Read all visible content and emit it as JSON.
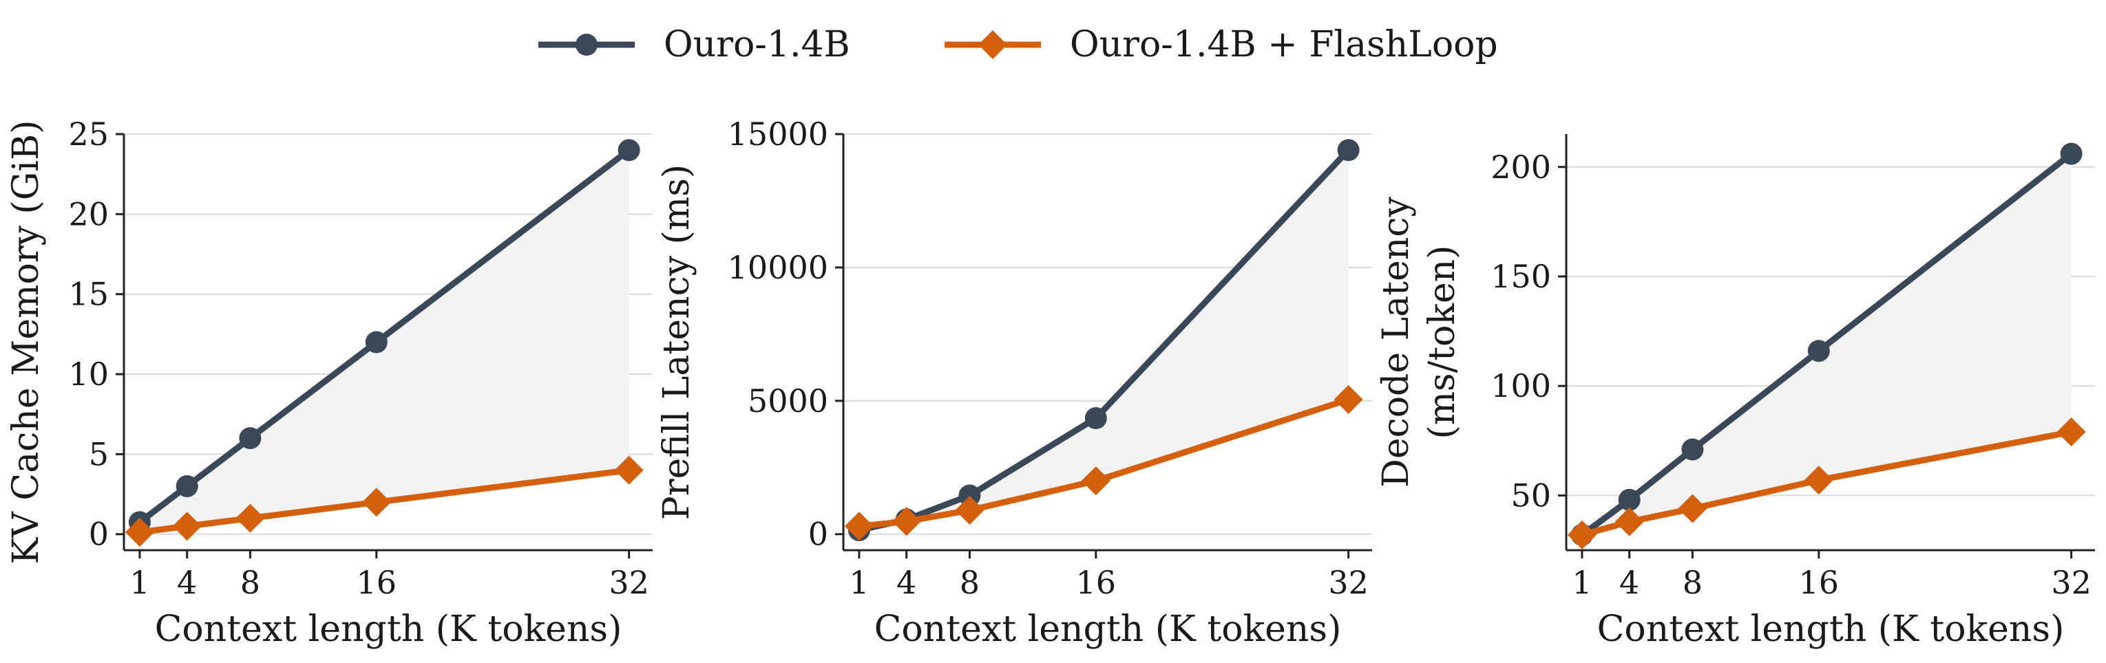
{
  "legend": {
    "placement": "top-center",
    "entries": [
      {
        "label": "Ouro-1.4B",
        "color": "#3b4858",
        "marker": "circle"
      },
      {
        "label": "Ouro-1.4B + FlashLoop",
        "color": "#d45f0c",
        "marker": "diamond"
      }
    ]
  },
  "colors": {
    "baseline": "#3b4858",
    "flashloop": "#d45f0c",
    "fill": "#f2f2f2",
    "grid": "#d9d9d9"
  },
  "chart_data": [
    {
      "type": "line",
      "xlabel": "Context length (K tokens)",
      "ylabel": [
        "KV Cache Memory (GiB)"
      ],
      "x": [
        1,
        4,
        8,
        16,
        32
      ],
      "xticks": [
        1,
        4,
        8,
        16,
        32
      ],
      "xlim": [
        0,
        33.5
      ],
      "ylim": [
        -1,
        25
      ],
      "yticks": [
        0,
        5,
        10,
        15,
        20,
        25
      ],
      "grid": "horizontal",
      "fill_between": true,
      "series": [
        {
          "name": "Ouro-1.4B",
          "values": [
            0.75,
            3,
            6,
            12,
            24
          ]
        },
        {
          "name": "Ouro-1.4B + FlashLoop",
          "values": [
            0.125,
            0.5,
            1,
            2,
            4
          ]
        }
      ]
    },
    {
      "type": "line",
      "xlabel": "Context length (K tokens)",
      "ylabel": [
        "Prefill Latency (ms)"
      ],
      "x": [
        1,
        4,
        8,
        16,
        32
      ],
      "xticks": [
        1,
        4,
        8,
        16,
        32
      ],
      "xlim": [
        0,
        33.5
      ],
      "ylim": [
        -600,
        15000
      ],
      "yticks": [
        0,
        5000,
        10000,
        15000
      ],
      "grid": "horizontal",
      "fill_between": true,
      "series": [
        {
          "name": "Ouro-1.4B",
          "values": [
            150,
            550,
            1450,
            4350,
            14400
          ]
        },
        {
          "name": "Ouro-1.4B + FlashLoop",
          "values": [
            300,
            480,
            900,
            2000,
            5050
          ]
        }
      ]
    },
    {
      "type": "line",
      "xlabel": "Context length (K tokens)",
      "ylabel": [
        "Decode Latency",
        "(ms/token)"
      ],
      "x": [
        1,
        4,
        8,
        16,
        32
      ],
      "xticks": [
        1,
        4,
        8,
        16,
        32
      ],
      "xlim": [
        0,
        33.5
      ],
      "ylim": [
        25,
        215
      ],
      "yticks": [
        50,
        100,
        150,
        200
      ],
      "grid": "horizontal",
      "fill_between": true,
      "series": [
        {
          "name": "Ouro-1.4B",
          "values": [
            32,
            48,
            71,
            116,
            206
          ]
        },
        {
          "name": "Ouro-1.4B + FlashLoop",
          "values": [
            32,
            38,
            44,
            57,
            79
          ]
        }
      ]
    }
  ]
}
